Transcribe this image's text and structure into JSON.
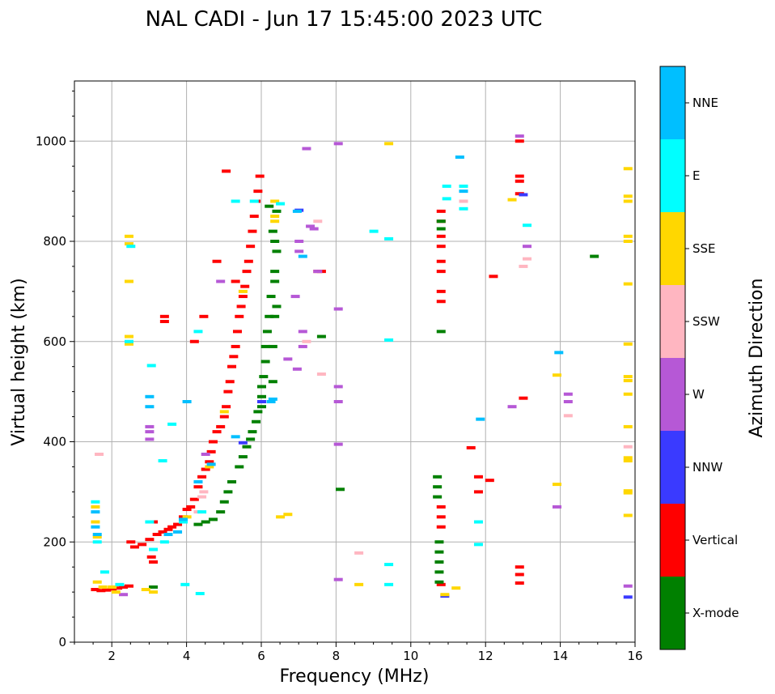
{
  "chart_data": {
    "type": "scatter",
    "title": "NAL CADI - Jun 17 15:45:00 2023 UTC",
    "xlabel": "Frequency (MHz)",
    "ylabel": "Virtual height (km)",
    "xlim": [
      1,
      16
    ],
    "ylim": [
      0,
      1120
    ],
    "xticks": [
      2,
      4,
      6,
      8,
      10,
      12,
      14,
      16
    ],
    "yticks": [
      0,
      200,
      400,
      600,
      800,
      1000
    ],
    "grid": true,
    "colorbar": {
      "label": "Azimuth Direction",
      "entries": [
        {
          "name": "X-mode",
          "color": "#008000"
        },
        {
          "name": "Vertical",
          "color": "#ff0000"
        },
        {
          "name": "NNW",
          "color": "#3a3aff"
        },
        {
          "name": "W",
          "color": "#b658d6"
        },
        {
          "name": "SSW",
          "color": "#ffb6c1"
        },
        {
          "name": "SSE",
          "color": "#ffd700"
        },
        {
          "name": "E",
          "color": "#00ffff"
        },
        {
          "name": "NNE",
          "color": "#00bfff"
        }
      ]
    },
    "series": [
      {
        "name": "Vertical",
        "points": [
          [
            1.55,
            105
          ],
          [
            1.7,
            103
          ],
          [
            1.85,
            104
          ],
          [
            2.0,
            106
          ],
          [
            2.15,
            108
          ],
          [
            2.3,
            110
          ],
          [
            2.45,
            112
          ],
          [
            2.5,
            200
          ],
          [
            2.6,
            190
          ],
          [
            2.8,
            195
          ],
          [
            3.0,
            205
          ],
          [
            3.05,
            170
          ],
          [
            3.1,
            160
          ],
          [
            3.1,
            240
          ],
          [
            3.2,
            215
          ],
          [
            3.35,
            220
          ],
          [
            3.5,
            225
          ],
          [
            3.6,
            230
          ],
          [
            3.75,
            235
          ],
          [
            3.9,
            250
          ],
          [
            4.0,
            265
          ],
          [
            4.1,
            270
          ],
          [
            4.2,
            285
          ],
          [
            4.3,
            310
          ],
          [
            4.4,
            330
          ],
          [
            4.5,
            345
          ],
          [
            4.6,
            360
          ],
          [
            4.65,
            380
          ],
          [
            4.7,
            400
          ],
          [
            4.8,
            420
          ],
          [
            4.9,
            430
          ],
          [
            5.0,
            450
          ],
          [
            5.05,
            470
          ],
          [
            5.1,
            500
          ],
          [
            5.15,
            520
          ],
          [
            5.2,
            550
          ],
          [
            5.25,
            570
          ],
          [
            5.3,
            590
          ],
          [
            5.35,
            620
          ],
          [
            5.4,
            650
          ],
          [
            5.45,
            670
          ],
          [
            5.5,
            690
          ],
          [
            5.55,
            710
          ],
          [
            5.6,
            740
          ],
          [
            5.65,
            760
          ],
          [
            5.7,
            790
          ],
          [
            5.75,
            820
          ],
          [
            5.8,
            850
          ],
          [
            5.85,
            880
          ],
          [
            5.9,
            900
          ],
          [
            5.95,
            930
          ],
          [
            5.05,
            940
          ],
          [
            4.2,
            600
          ],
          [
            4.45,
            650
          ],
          [
            3.4,
            650
          ],
          [
            3.4,
            640
          ],
          [
            4.8,
            760
          ],
          [
            5.3,
            720
          ],
          [
            10.8,
            860
          ],
          [
            10.8,
            840
          ],
          [
            10.8,
            810
          ],
          [
            10.8,
            790
          ],
          [
            10.8,
            760
          ],
          [
            10.8,
            740
          ],
          [
            10.8,
            700
          ],
          [
            10.8,
            680
          ],
          [
            10.8,
            270
          ],
          [
            10.8,
            250
          ],
          [
            10.8,
            230
          ],
          [
            10.8,
            115
          ],
          [
            12.2,
            730
          ],
          [
            11.6,
            388
          ],
          [
            11.8,
            300
          ],
          [
            11.8,
            330
          ],
          [
            12.1,
            323
          ],
          [
            12.9,
            1000
          ],
          [
            12.9,
            930
          ],
          [
            12.9,
            920
          ],
          [
            12.9,
            895
          ],
          [
            12.9,
            150
          ],
          [
            12.9,
            135
          ],
          [
            12.9,
            118
          ],
          [
            13.0,
            487
          ],
          [
            7.6,
            740
          ],
          [
            7.5,
            740
          ]
        ]
      },
      {
        "name": "X-mode",
        "points": [
          [
            3.1,
            110
          ],
          [
            4.3,
            235
          ],
          [
            4.5,
            240
          ],
          [
            4.7,
            245
          ],
          [
            4.9,
            260
          ],
          [
            5.0,
            280
          ],
          [
            5.1,
            300
          ],
          [
            5.2,
            320
          ],
          [
            5.4,
            350
          ],
          [
            5.5,
            370
          ],
          [
            5.6,
            390
          ],
          [
            5.7,
            405
          ],
          [
            5.75,
            420
          ],
          [
            5.85,
            440
          ],
          [
            5.9,
            460
          ],
          [
            6.0,
            490
          ],
          [
            6.0,
            510
          ],
          [
            6.05,
            530
          ],
          [
            6.1,
            560
          ],
          [
            6.1,
            590
          ],
          [
            6.15,
            620
          ],
          [
            6.2,
            650
          ],
          [
            6.25,
            690
          ],
          [
            6.35,
            720
          ],
          [
            6.35,
            740
          ],
          [
            6.4,
            780
          ],
          [
            6.35,
            800
          ],
          [
            6.3,
            820
          ],
          [
            6.2,
            870
          ],
          [
            6.4,
            860
          ],
          [
            6.3,
            590
          ],
          [
            6.35,
            650
          ],
          [
            6.4,
            670
          ],
          [
            6.3,
            520
          ],
          [
            7.6,
            610
          ],
          [
            8.1,
            305
          ],
          [
            10.7,
            330
          ],
          [
            10.7,
            310
          ],
          [
            10.7,
            290
          ],
          [
            10.75,
            200
          ],
          [
            10.75,
            180
          ],
          [
            10.75,
            160
          ],
          [
            10.75,
            140
          ],
          [
            10.75,
            120
          ],
          [
            10.8,
            620
          ],
          [
            10.8,
            840
          ],
          [
            10.8,
            825
          ],
          [
            14.9,
            770
          ],
          [
            6.0,
            470
          ]
        ]
      },
      {
        "name": "NNW",
        "points": [
          [
            5.5,
            398
          ],
          [
            6.0,
            480
          ],
          [
            7.0,
            862
          ],
          [
            10.9,
            92
          ],
          [
            13.0,
            893
          ],
          [
            15.8,
            90
          ]
        ]
      },
      {
        "name": "W",
        "points": [
          [
            2.3,
            95
          ],
          [
            3.0,
            420
          ],
          [
            3.0,
            430
          ],
          [
            3.0,
            405
          ],
          [
            4.5,
            375
          ],
          [
            4.9,
            720
          ],
          [
            6.7,
            565
          ],
          [
            6.9,
            690
          ],
          [
            6.95,
            545
          ],
          [
            7.0,
            800
          ],
          [
            7.0,
            780
          ],
          [
            7.1,
            590
          ],
          [
            7.1,
            620
          ],
          [
            7.2,
            985
          ],
          [
            7.3,
            830
          ],
          [
            7.4,
            825
          ],
          [
            7.5,
            740
          ],
          [
            8.05,
            995
          ],
          [
            8.05,
            665
          ],
          [
            8.05,
            510
          ],
          [
            8.05,
            480
          ],
          [
            8.05,
            395
          ],
          [
            8.05,
            125
          ],
          [
            12.7,
            470
          ],
          [
            13.1,
            790
          ],
          [
            13.9,
            270
          ],
          [
            14.2,
            495
          ],
          [
            14.2,
            480
          ],
          [
            12.9,
            1010
          ],
          [
            15.8,
            112
          ]
        ]
      },
      {
        "name": "SSW",
        "points": [
          [
            1.65,
            375
          ],
          [
            4.4,
            290
          ],
          [
            4.45,
            300
          ],
          [
            4.3,
            260
          ],
          [
            7.2,
            600
          ],
          [
            7.5,
            840
          ],
          [
            7.6,
            535
          ],
          [
            8.6,
            178
          ],
          [
            11.4,
            880
          ],
          [
            13.0,
            750
          ],
          [
            13.1,
            765
          ],
          [
            14.2,
            452
          ],
          [
            15.8,
            390
          ]
        ]
      },
      {
        "name": "SSE",
        "points": [
          [
            1.55,
            270
          ],
          [
            1.55,
            240
          ],
          [
            1.6,
            210
          ],
          [
            1.6,
            120
          ],
          [
            1.75,
            110
          ],
          [
            2.0,
            110
          ],
          [
            2.1,
            100
          ],
          [
            2.45,
            810
          ],
          [
            2.45,
            795
          ],
          [
            2.45,
            720
          ],
          [
            2.45,
            610
          ],
          [
            2.45,
            595
          ],
          [
            2.9,
            105
          ],
          [
            3.1,
            100
          ],
          [
            4.0,
            250
          ],
          [
            4.6,
            350
          ],
          [
            5.0,
            460
          ],
          [
            5.5,
            700
          ],
          [
            6.35,
            880
          ],
          [
            6.35,
            850
          ],
          [
            6.35,
            840
          ],
          [
            6.5,
            250
          ],
          [
            6.7,
            255
          ],
          [
            8.6,
            115
          ],
          [
            9.4,
            995
          ],
          [
            10.9,
            95
          ],
          [
            11.2,
            108
          ],
          [
            12.7,
            883
          ],
          [
            13.9,
            533
          ],
          [
            13.9,
            315
          ],
          [
            15.8,
            945
          ],
          [
            15.8,
            890
          ],
          [
            15.8,
            880
          ],
          [
            15.8,
            810
          ],
          [
            15.8,
            800
          ],
          [
            15.8,
            715
          ],
          [
            15.8,
            595
          ],
          [
            15.8,
            530
          ],
          [
            15.8,
            522
          ],
          [
            15.8,
            495
          ],
          [
            15.8,
            430
          ],
          [
            15.8,
            368
          ],
          [
            15.8,
            362
          ],
          [
            15.8,
            302
          ],
          [
            15.8,
            298
          ],
          [
            15.8,
            253
          ]
        ]
      },
      {
        "name": "E",
        "points": [
          [
            1.55,
            280
          ],
          [
            1.6,
            200
          ],
          [
            1.8,
            140
          ],
          [
            2.2,
            115
          ],
          [
            2.5,
            790
          ],
          [
            2.45,
            600
          ],
          [
            3.05,
            552
          ],
          [
            3.0,
            240
          ],
          [
            3.1,
            185
          ],
          [
            3.35,
            362
          ],
          [
            3.4,
            200
          ],
          [
            3.6,
            435
          ],
          [
            3.9,
            240
          ],
          [
            3.95,
            115
          ],
          [
            4.3,
            620
          ],
          [
            4.35,
            97
          ],
          [
            4.4,
            260
          ],
          [
            5.3,
            880
          ],
          [
            5.8,
            880
          ],
          [
            6.5,
            875
          ],
          [
            9.0,
            820
          ],
          [
            9.4,
            805
          ],
          [
            9.4,
            603
          ],
          [
            9.4,
            155
          ],
          [
            9.4,
            115
          ],
          [
            10.95,
            910
          ],
          [
            10.95,
            885
          ],
          [
            11.4,
            910
          ],
          [
            11.4,
            865
          ],
          [
            11.8,
            195
          ],
          [
            11.8,
            240
          ],
          [
            13.1,
            832
          ]
        ]
      },
      {
        "name": "NNE",
        "points": [
          [
            1.55,
            230
          ],
          [
            1.55,
            260
          ],
          [
            1.6,
            215
          ],
          [
            3.0,
            490
          ],
          [
            3.0,
            470
          ],
          [
            3.5,
            215
          ],
          [
            3.75,
            220
          ],
          [
            3.9,
            245
          ],
          [
            4.0,
            480
          ],
          [
            4.3,
            320
          ],
          [
            4.65,
            355
          ],
          [
            5.3,
            410
          ],
          [
            6.25,
            480
          ],
          [
            6.3,
            485
          ],
          [
            6.95,
            860
          ],
          [
            7.1,
            770
          ],
          [
            11.3,
            968
          ],
          [
            11.4,
            900
          ],
          [
            11.85,
            445
          ],
          [
            13.95,
            578
          ]
        ]
      }
    ]
  }
}
